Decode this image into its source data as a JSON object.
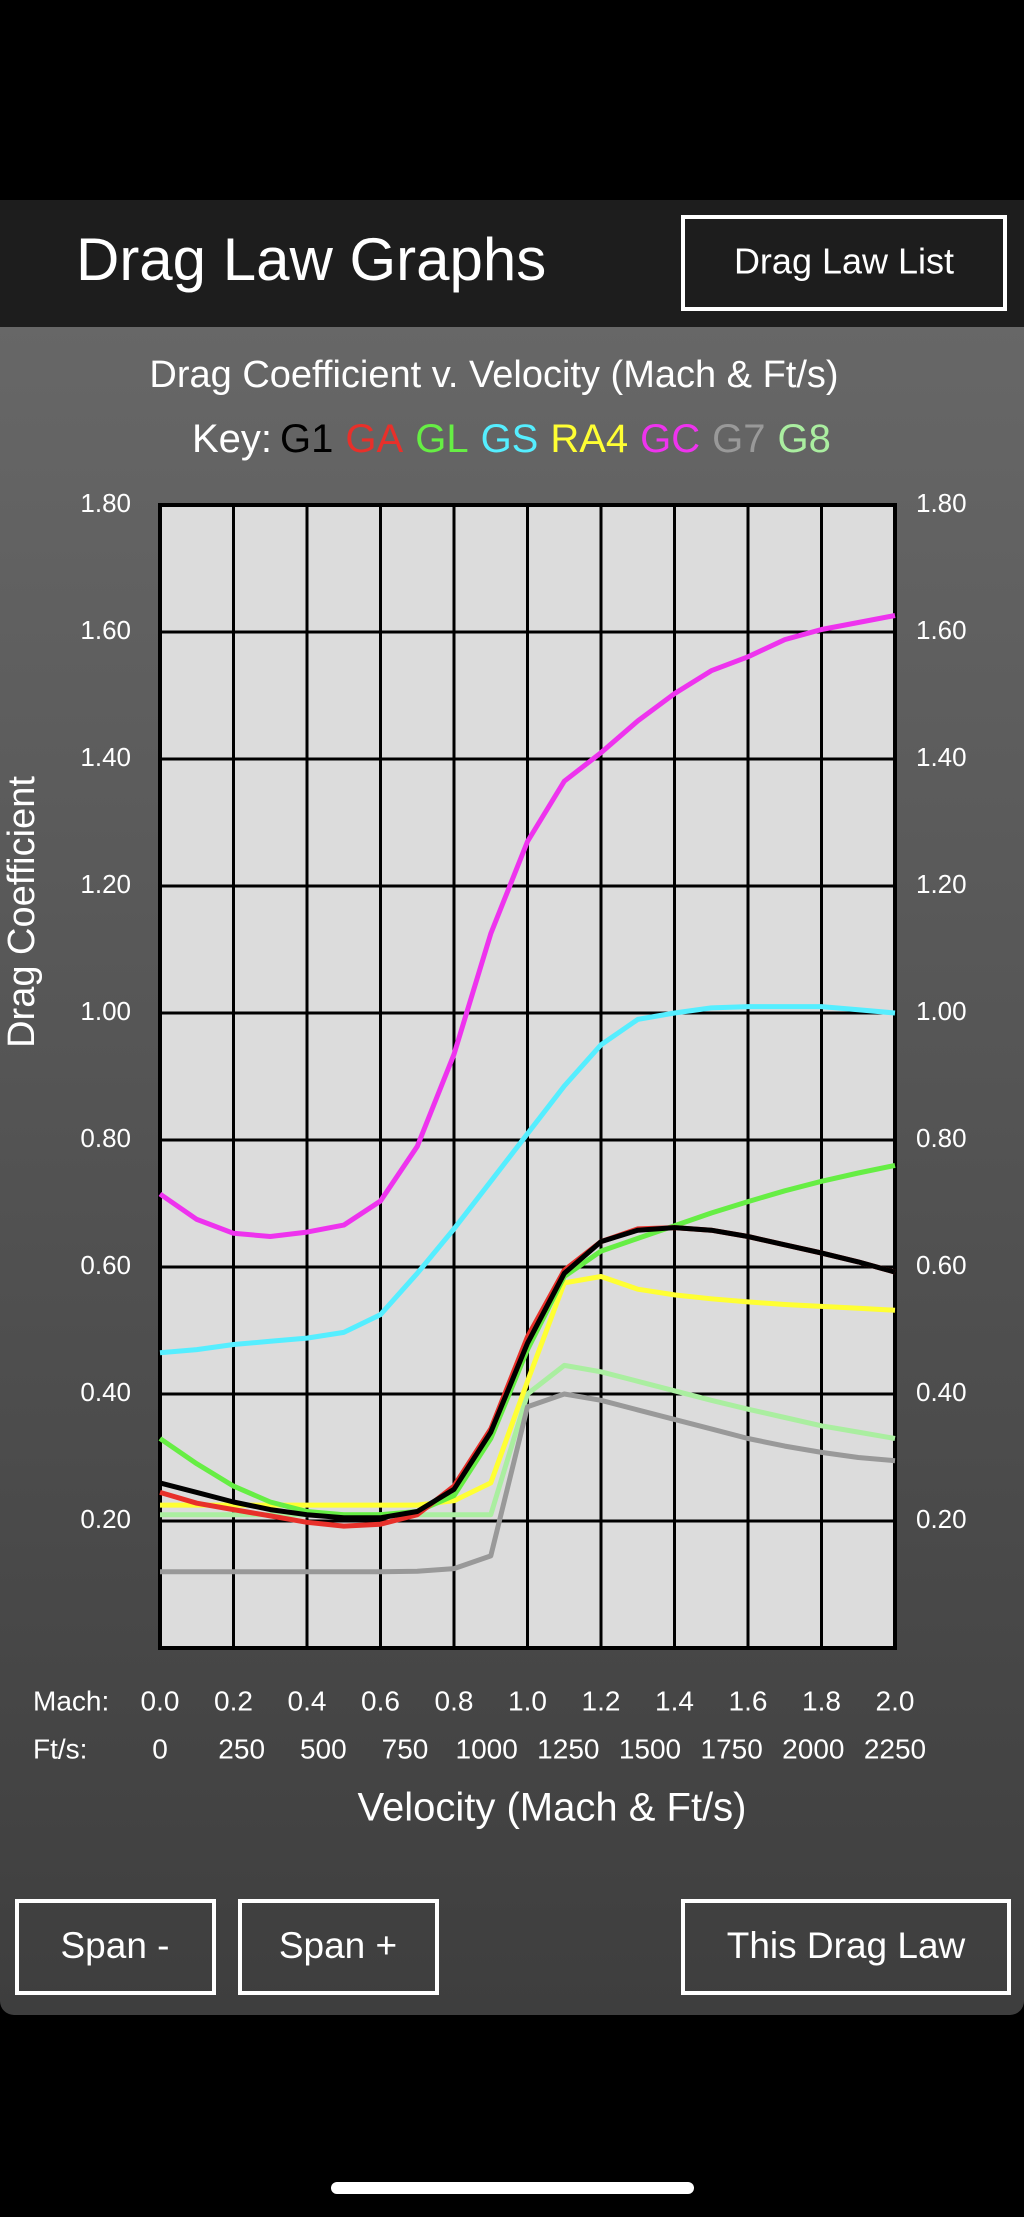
{
  "header": {
    "title": "Drag Law Graphs",
    "button": "Drag Law List"
  },
  "chart_data": {
    "type": "line",
    "title": "Drag Coefficient v. Velocity (Mach & Ft/s)",
    "legend_title": "Key:",
    "ylabel": "Drag Coefficient",
    "xlabel": "Velocity (Mach & Ft/s)",
    "x_row_label": "Mach:",
    "x2_row_label": "Ft/s:",
    "x": [
      0,
      0.1,
      0.2,
      0.3,
      0.4,
      0.5,
      0.6,
      0.7,
      0.8,
      0.9,
      1.0,
      1.1,
      1.2,
      1.3,
      1.4,
      1.5,
      1.6,
      1.7,
      1.8,
      1.9,
      2.0
    ],
    "xlim": [
      0,
      2.0
    ],
    "xticks": [
      {
        "value": 0,
        "label": "0.0"
      },
      0.2,
      0.4,
      0.6,
      0.8,
      {
        "value": 1.0,
        "label": "1.0"
      },
      1.2,
      1.4,
      1.6,
      1.8,
      {
        "value": 2.0,
        "label": "2.0"
      }
    ],
    "x2lim": [
      0,
      2250
    ],
    "x2ticks": [
      0,
      250,
      500,
      750,
      1000,
      1250,
      1500,
      1750,
      2000,
      2250
    ],
    "ylim": [
      0,
      1.8
    ],
    "yticks": [
      {
        "value": 0.2,
        "label": "0.20"
      },
      {
        "value": 0.4,
        "label": "0.40"
      },
      {
        "value": 0.6,
        "label": "0.60"
      },
      {
        "value": 0.8,
        "label": "0.80"
      },
      {
        "value": 1.0,
        "label": "1.00"
      },
      {
        "value": 1.2,
        "label": "1.20"
      },
      {
        "value": 1.4,
        "label": "1.40"
      },
      {
        "value": 1.6,
        "label": "1.60"
      },
      {
        "value": 1.8,
        "label": "1.80"
      }
    ],
    "grid": true,
    "series": [
      {
        "name": "G1",
        "color": "#000000",
        "values": [
          0.26,
          0.245,
          0.23,
          0.218,
          0.21,
          0.205,
          0.205,
          0.215,
          0.25,
          0.34,
          0.48,
          0.59,
          0.64,
          0.658,
          0.662,
          0.658,
          0.648,
          0.635,
          0.622,
          0.608,
          0.592
        ]
      },
      {
        "name": "GA",
        "color": "#e8302a",
        "values": [
          0.245,
          0.228,
          0.218,
          0.208,
          0.198,
          0.192,
          0.195,
          0.21,
          0.255,
          0.345,
          0.49,
          0.595,
          0.64,
          0.66,
          0.662,
          0.658,
          0.648,
          0.635,
          0.622,
          0.608,
          0.592
        ]
      },
      {
        "name": "GL",
        "color": "#66ee44",
        "values": [
          0.33,
          0.29,
          0.255,
          0.23,
          0.215,
          0.21,
          0.21,
          0.215,
          0.24,
          0.33,
          0.47,
          0.585,
          0.625,
          0.645,
          0.665,
          0.685,
          0.703,
          0.72,
          0.735,
          0.748,
          0.76
        ]
      },
      {
        "name": "GS",
        "color": "#55eeff",
        "values": [
          0.465,
          0.47,
          0.478,
          0.483,
          0.488,
          0.497,
          0.525,
          0.59,
          0.66,
          0.735,
          0.81,
          0.885,
          0.95,
          0.99,
          1.0,
          1.008,
          1.01,
          1.01,
          1.01,
          1.005,
          1.0
        ]
      },
      {
        "name": "RA4",
        "color": "#ffff33",
        "values": [
          0.225,
          0.225,
          0.225,
          0.225,
          0.225,
          0.225,
          0.225,
          0.225,
          0.232,
          0.26,
          0.42,
          0.575,
          0.585,
          0.565,
          0.556,
          0.55,
          0.545,
          0.541,
          0.538,
          0.535,
          0.532
        ]
      },
      {
        "name": "GC",
        "color": "#ee33ee",
        "values": [
          0.715,
          0.675,
          0.653,
          0.648,
          0.655,
          0.666,
          0.704,
          0.79,
          0.935,
          1.125,
          1.27,
          1.365,
          1.41,
          1.46,
          1.503,
          1.539,
          1.561,
          1.588,
          1.604,
          1.615,
          1.626
        ]
      },
      {
        "name": "G7",
        "color": "#999999",
        "values": [
          0.12,
          0.12,
          0.12,
          0.12,
          0.12,
          0.12,
          0.12,
          0.121,
          0.125,
          0.145,
          0.38,
          0.4,
          0.39,
          0.375,
          0.36,
          0.345,
          0.33,
          0.318,
          0.308,
          0.3,
          0.295
        ]
      },
      {
        "name": "G8",
        "color": "#aaeea0",
        "values": [
          0.21,
          0.21,
          0.21,
          0.21,
          0.21,
          0.21,
          0.21,
          0.21,
          0.21,
          0.21,
          0.4,
          0.445,
          0.435,
          0.42,
          0.405,
          0.39,
          0.376,
          0.363,
          0.35,
          0.34,
          0.33
        ]
      }
    ]
  },
  "footer_buttons": [
    "Span -",
    "Span +",
    "This Drag Law"
  ]
}
